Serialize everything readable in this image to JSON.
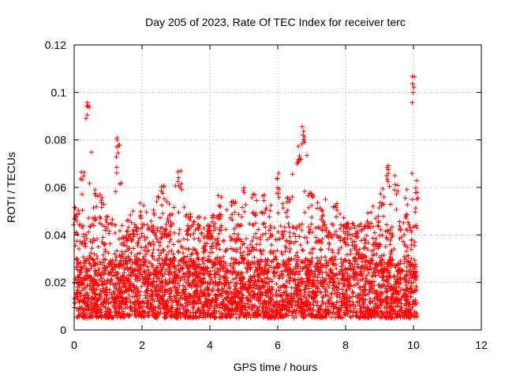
{
  "chart_data": {
    "type": "scatter",
    "title": "Day 205 of 2023, Rate Of TEC Index for receiver terc",
    "xlabel": "GPS time / hours",
    "ylabel": "ROTI / TECUs",
    "xlim": [
      0,
      12
    ],
    "ylim": [
      0,
      0.12
    ],
    "xticks": [
      "0",
      "2",
      "4",
      "6",
      "8",
      "10",
      "12"
    ],
    "yticks": [
      "0",
      "0.02",
      "0.04",
      "0.06",
      "0.08",
      "0.1",
      "0.12"
    ],
    "grid": true,
    "marker": "+",
    "color": "#ff0000",
    "x_range_of_data": [
      0,
      10.1
    ],
    "dense_band": [
      0.005,
      0.03
    ],
    "upper_envelope": [
      [
        0.0,
        0.052
      ],
      [
        0.1,
        0.051
      ],
      [
        0.25,
        0.069
      ],
      [
        0.4,
        0.099
      ],
      [
        0.6,
        0.059
      ],
      [
        0.8,
        0.058
      ],
      [
        1.0,
        0.052
      ],
      [
        1.3,
        0.081
      ],
      [
        1.5,
        0.047
      ],
      [
        1.8,
        0.051
      ],
      [
        2.0,
        0.054
      ],
      [
        2.3,
        0.052
      ],
      [
        2.6,
        0.061
      ],
      [
        2.8,
        0.056
      ],
      [
        3.1,
        0.067
      ],
      [
        3.4,
        0.049
      ],
      [
        3.7,
        0.052
      ],
      [
        4.0,
        0.046
      ],
      [
        4.3,
        0.058
      ],
      [
        4.7,
        0.055
      ],
      [
        5.0,
        0.061
      ],
      [
        5.3,
        0.058
      ],
      [
        5.6,
        0.057
      ],
      [
        6.0,
        0.069
      ],
      [
        6.3,
        0.06
      ],
      [
        6.6,
        0.078
      ],
      [
        6.75,
        0.089
      ],
      [
        7.0,
        0.058
      ],
      [
        7.3,
        0.054
      ],
      [
        7.7,
        0.059
      ],
      [
        8.0,
        0.045
      ],
      [
        8.3,
        0.046
      ],
      [
        8.6,
        0.049
      ],
      [
        9.0,
        0.055
      ],
      [
        9.25,
        0.074
      ],
      [
        9.5,
        0.066
      ],
      [
        9.8,
        0.057
      ],
      [
        10.0,
        0.107
      ],
      [
        10.1,
        0.066
      ]
    ]
  }
}
